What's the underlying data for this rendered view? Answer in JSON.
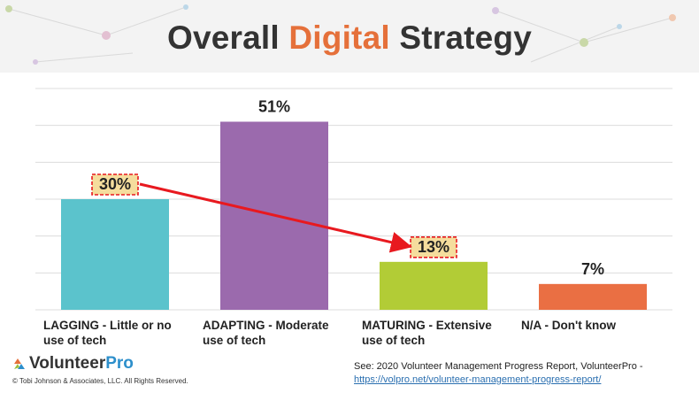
{
  "title": {
    "part1": "Overall",
    "accent": "Digital",
    "part2": "Strategy"
  },
  "chart_data": {
    "type": "bar",
    "title": "Overall Digital Strategy",
    "categories": [
      "LAGGING - Little or no use of tech",
      "ADAPTING - Moderate use of tech",
      "MATURING - Extensive use of tech",
      "N/A - Don't know"
    ],
    "values": [
      30,
      51,
      13,
      7
    ],
    "value_labels": [
      "30%",
      "51%",
      "13%",
      "7%"
    ],
    "colors": [
      "#5bc3cc",
      "#9b6aad",
      "#b2cc36",
      "#ea6f43"
    ],
    "highlighted": [
      true,
      false,
      true,
      false
    ],
    "annotation": {
      "type": "arrow",
      "from_category": 0,
      "to_category": 2,
      "color": "#e8191f"
    },
    "ylim": [
      0,
      60
    ],
    "grid": true,
    "xlabel": "",
    "ylabel": ""
  },
  "footer": {
    "logo_part1": "Volunteer",
    "logo_part2": "Pro",
    "copyright": "© Tobi Johnson & Associates, LLC. All Rights Reserved.",
    "source_text": "See: 2020 Volunteer Management Progress Report, VolunteerPro -",
    "source_link": "https://volpro.net/volunteer-management-progress-report/"
  }
}
